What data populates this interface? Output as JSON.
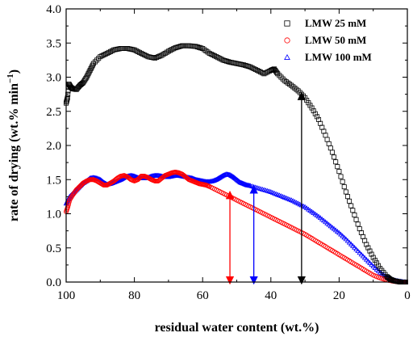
{
  "chart_data": {
    "type": "scatter",
    "xlabel": "residual water content (wt.%)",
    "ylabel_main": "rate of drying (wt.% min",
    "ylabel_sup": "−1",
    "ylabel_close": ")",
    "xlim": [
      100,
      0
    ],
    "ylim": [
      0,
      4.0
    ],
    "x_ticks": [
      100,
      80,
      60,
      40,
      20,
      0
    ],
    "x_tick_labels": [
      "100",
      "80",
      "60",
      "40",
      "20",
      "0"
    ],
    "y_ticks": [
      0,
      0.5,
      1.0,
      1.5,
      2.0,
      2.5,
      3.0,
      3.5,
      4.0
    ],
    "y_tick_labels": [
      "0.0",
      "0.5",
      "1.0",
      "1.5",
      "2.0",
      "2.5",
      "3.0",
      "3.5",
      "4.0"
    ],
    "legend_position": "top-right",
    "series": [
      {
        "name": "LMW 25 mM",
        "marker": "square",
        "color": "#000000",
        "x": [
          100,
          99.6,
          99.2,
          98.6,
          98,
          97,
          96,
          95,
          94,
          93,
          92,
          90,
          88,
          86,
          84,
          82,
          80,
          78,
          76,
          74,
          72,
          70,
          68,
          66,
          64,
          62,
          60,
          58,
          56,
          54,
          52,
          50,
          48,
          46,
          44,
          42,
          40,
          39,
          38,
          36,
          34,
          32,
          30,
          28,
          26,
          24,
          22,
          20,
          18,
          16,
          14,
          12,
          10,
          8,
          6,
          5,
          4,
          3,
          2,
          1,
          0.5
        ],
        "y": [
          2.62,
          2.7,
          2.9,
          2.85,
          2.83,
          2.82,
          2.88,
          2.92,
          3.0,
          3.1,
          3.2,
          3.3,
          3.35,
          3.4,
          3.42,
          3.42,
          3.4,
          3.35,
          3.3,
          3.28,
          3.32,
          3.38,
          3.43,
          3.46,
          3.46,
          3.45,
          3.42,
          3.35,
          3.3,
          3.25,
          3.22,
          3.2,
          3.18,
          3.15,
          3.1,
          3.05,
          3.1,
          3.12,
          3.05,
          2.95,
          2.88,
          2.8,
          2.7,
          2.55,
          2.38,
          2.15,
          1.9,
          1.62,
          1.32,
          1.05,
          0.78,
          0.55,
          0.36,
          0.2,
          0.08,
          0.04,
          0.02,
          0.01,
          0.0,
          0.0,
          0.0
        ]
      },
      {
        "name": "LMW 50 mM",
        "marker": "circle",
        "color": "#ff0000",
        "x": [
          100,
          99.5,
          99,
          98,
          97,
          96,
          95,
          94,
          93,
          92,
          91,
          90,
          89,
          88,
          87,
          86,
          85,
          84,
          83,
          82,
          81,
          80,
          79,
          78,
          77,
          76,
          75,
          74,
          73,
          72,
          71,
          70,
          69,
          68,
          67,
          66,
          65,
          64,
          63,
          62,
          61,
          60,
          59,
          58,
          56,
          54,
          52,
          50,
          48,
          46,
          44,
          42,
          40,
          38,
          36,
          34,
          32,
          30,
          28,
          26,
          24,
          22,
          20,
          18,
          16,
          14,
          12,
          10,
          8,
          6,
          4,
          2,
          1,
          0.5
        ],
        "y": [
          1.03,
          1.1,
          1.2,
          1.28,
          1.35,
          1.4,
          1.45,
          1.48,
          1.5,
          1.5,
          1.48,
          1.45,
          1.42,
          1.42,
          1.45,
          1.48,
          1.52,
          1.55,
          1.56,
          1.54,
          1.5,
          1.48,
          1.5,
          1.55,
          1.55,
          1.53,
          1.5,
          1.48,
          1.48,
          1.52,
          1.56,
          1.58,
          1.6,
          1.61,
          1.6,
          1.58,
          1.54,
          1.5,
          1.48,
          1.46,
          1.44,
          1.43,
          1.42,
          1.4,
          1.35,
          1.3,
          1.25,
          1.2,
          1.15,
          1.1,
          1.05,
          1.0,
          0.95,
          0.9,
          0.85,
          0.8,
          0.75,
          0.7,
          0.64,
          0.58,
          0.52,
          0.46,
          0.4,
          0.34,
          0.28,
          0.22,
          0.16,
          0.1,
          0.06,
          0.03,
          0.01,
          0.0,
          0.0,
          0.0
        ]
      },
      {
        "name": "LMW 100 mM",
        "marker": "triangle",
        "color": "#0000ff",
        "x": [
          100,
          99.5,
          99,
          98,
          97,
          96,
          95,
          94,
          93,
          92,
          91,
          90,
          89,
          88,
          87,
          86,
          85,
          84,
          83,
          82,
          81,
          80,
          79,
          78,
          77,
          76,
          75,
          74,
          73,
          72,
          71,
          70,
          69,
          68,
          67,
          66,
          65,
          64,
          63,
          62,
          61,
          60,
          59,
          58,
          57,
          56,
          55,
          54,
          53,
          52,
          51,
          50,
          49,
          48,
          47,
          46,
          44,
          42,
          40,
          38,
          36,
          34,
          32,
          30,
          28,
          26,
          24,
          22,
          20,
          18,
          16,
          14,
          12,
          10,
          8,
          6,
          4,
          2,
          1,
          0.5
        ],
        "y": [
          1.15,
          1.2,
          1.25,
          1.3,
          1.35,
          1.4,
          1.45,
          1.48,
          1.52,
          1.53,
          1.52,
          1.5,
          1.46,
          1.43,
          1.44,
          1.46,
          1.48,
          1.5,
          1.53,
          1.55,
          1.56,
          1.55,
          1.53,
          1.52,
          1.52,
          1.53,
          1.55,
          1.56,
          1.56,
          1.55,
          1.54,
          1.54,
          1.55,
          1.56,
          1.56,
          1.55,
          1.54,
          1.53,
          1.52,
          1.5,
          1.49,
          1.48,
          1.47,
          1.47,
          1.48,
          1.5,
          1.53,
          1.56,
          1.58,
          1.57,
          1.54,
          1.5,
          1.46,
          1.44,
          1.42,
          1.41,
          1.38,
          1.35,
          1.32,
          1.28,
          1.24,
          1.2,
          1.15,
          1.1,
          1.03,
          0.96,
          0.88,
          0.8,
          0.72,
          0.63,
          0.53,
          0.43,
          0.33,
          0.23,
          0.14,
          0.07,
          0.03,
          0.01,
          0.0,
          0.0
        ]
      }
    ],
    "annotations": [
      {
        "type": "double-arrow",
        "x": 52,
        "y_from": 0.0,
        "y_to": 1.3,
        "color": "#ff0000"
      },
      {
        "type": "double-arrow",
        "x": 45,
        "y_from": 0.0,
        "y_to": 1.38,
        "color": "#0000ff"
      },
      {
        "type": "double-arrow",
        "x": 31,
        "y_from": 0.0,
        "y_to": 2.75,
        "color": "#000000"
      }
    ]
  }
}
